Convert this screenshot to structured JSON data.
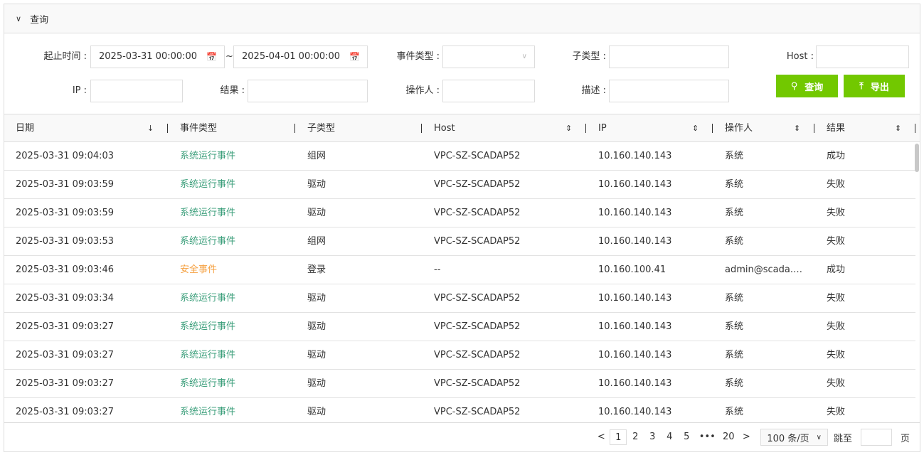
{
  "query_panel": {
    "title": "查询"
  },
  "filters": {
    "time_label": "起止时间 :",
    "start": "2025-03-31 00:00:00",
    "tilde": "~",
    "end": "2025-04-01 00:00:00",
    "event_type_label": "事件类型 :",
    "event_type_value": "",
    "subtype_label": "子类型 :",
    "host_label": "Host :",
    "ip_label": "IP :",
    "result_label": "结果 :",
    "operator_label": "操作人 :",
    "desc_label": "描述 :",
    "query_button": "查询",
    "export_button": "导出"
  },
  "colors": {
    "accent": "#72c800",
    "system_event": "#3a9e7a",
    "security_event": "#f5a040"
  },
  "table": {
    "columns": [
      "日期",
      "事件类型",
      "子类型",
      "Host",
      "IP",
      "操作人",
      "结果"
    ],
    "rows": [
      [
        "2025-03-31 09:04:03",
        "系统运行事件",
        "组网",
        "VPC-SZ-SCADAP52",
        "10.160.140.143",
        "系统",
        "成功"
      ],
      [
        "2025-03-31 09:03:59",
        "系统运行事件",
        "驱动",
        "VPC-SZ-SCADAP52",
        "10.160.140.143",
        "系统",
        "失败"
      ],
      [
        "2025-03-31 09:03:59",
        "系统运行事件",
        "驱动",
        "VPC-SZ-SCADAP52",
        "10.160.140.143",
        "系统",
        "失败"
      ],
      [
        "2025-03-31 09:03:53",
        "系统运行事件",
        "组网",
        "VPC-SZ-SCADAP52",
        "10.160.140.143",
        "系统",
        "失败"
      ],
      [
        "2025-03-31 09:03:46",
        "安全事件",
        "登录",
        "--",
        "10.160.100.41",
        "admin@scada.…",
        "成功"
      ],
      [
        "2025-03-31 09:03:34",
        "系统运行事件",
        "驱动",
        "VPC-SZ-SCADAP52",
        "10.160.140.143",
        "系统",
        "失败"
      ],
      [
        "2025-03-31 09:03:27",
        "系统运行事件",
        "驱动",
        "VPC-SZ-SCADAP52",
        "10.160.140.143",
        "系统",
        "失败"
      ],
      [
        "2025-03-31 09:03:27",
        "系统运行事件",
        "驱动",
        "VPC-SZ-SCADAP52",
        "10.160.140.143",
        "系统",
        "失败"
      ],
      [
        "2025-03-31 09:03:27",
        "系统运行事件",
        "驱动",
        "VPC-SZ-SCADAP52",
        "10.160.140.143",
        "系统",
        "失败"
      ],
      [
        "2025-03-31 09:03:27",
        "系统运行事件",
        "驱动",
        "VPC-SZ-SCADAP52",
        "10.160.140.143",
        "系统",
        "失败"
      ]
    ]
  },
  "pagination": {
    "prev": "<",
    "pages": [
      "1",
      "2",
      "3",
      "4",
      "5"
    ],
    "ellipsis": "•••",
    "last": "20",
    "next": ">",
    "current": "1",
    "page_size": "100 条/页",
    "jump_label": "跳至",
    "page_suffix": "页"
  }
}
